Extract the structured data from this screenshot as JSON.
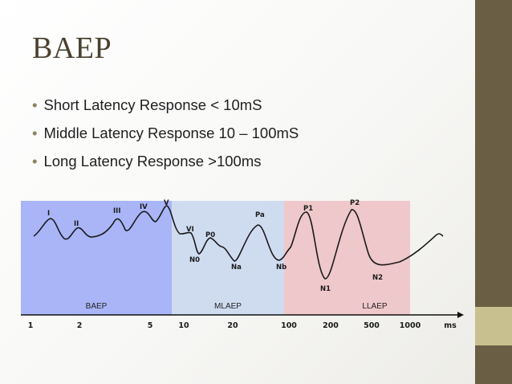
{
  "slide": {
    "title": "BAEP",
    "bullets": [
      "Short Latency Response < 10mS",
      "Middle Latency Response 10 – 100mS",
      "Long Latency Response >100ms"
    ]
  },
  "figure": {
    "zones": [
      {
        "label": "BAEP",
        "color": "#a9b5f7"
      },
      {
        "label": "MLAEP",
        "color": "#cfdcf0"
      },
      {
        "label": "LLAEP",
        "color": "#efc8cb"
      }
    ],
    "peaks": [
      "I",
      "II",
      "III",
      "IV",
      "V",
      "VI",
      "P0",
      "N0",
      "Na",
      "Pa",
      "Nb",
      "P1",
      "N1",
      "P2",
      "N2"
    ],
    "axis_ticks": [
      "1",
      "2",
      "5",
      "10",
      "20",
      "100",
      "200",
      "500",
      "1000"
    ],
    "axis_unit": "ms"
  },
  "colors": {
    "side_bar": "#6a5f45",
    "side_accent": "#c8c08e",
    "title": "#4a4030"
  }
}
